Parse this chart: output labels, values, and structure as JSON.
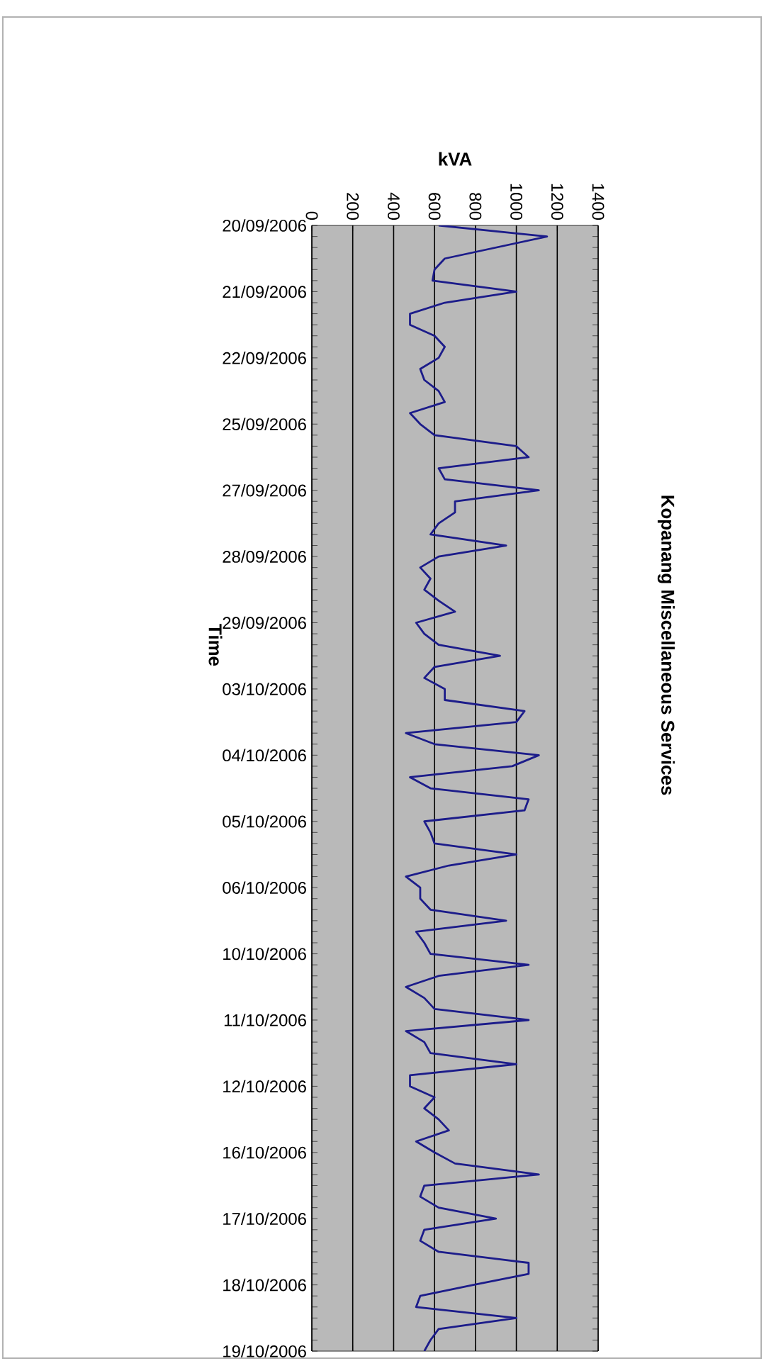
{
  "chart_data": {
    "type": "line",
    "orientation": "horizontal",
    "title": "Kopanang Miscellaneous Services",
    "xlabel": "kVA",
    "ylabel": "Time",
    "categories": [
      "20/09/2006",
      null,
      null,
      null,
      null,
      null,
      "21/09/2006",
      null,
      null,
      null,
      null,
      null,
      "22/09/2006",
      null,
      null,
      null,
      null,
      null,
      "25/09/2006",
      null,
      null,
      null,
      null,
      null,
      "27/09/2006",
      null,
      null,
      null,
      null,
      null,
      "28/09/2006",
      null,
      null,
      null,
      null,
      null,
      "29/09/2006",
      null,
      null,
      null,
      null,
      null,
      "03/10/2006",
      null,
      null,
      null,
      null,
      null,
      "04/10/2006",
      null,
      null,
      null,
      null,
      null,
      "05/10/2006",
      null,
      null,
      null,
      null,
      null,
      "06/10/2006",
      null,
      null,
      null,
      null,
      null,
      "10/10/2006",
      null,
      null,
      null,
      null,
      null,
      "11/10/2006",
      null,
      null,
      null,
      null,
      null,
      "12/10/2006",
      null,
      null,
      null,
      null,
      null,
      "16/10/2006",
      null,
      null,
      null,
      null,
      null,
      "17/10/2006",
      null,
      null,
      null,
      null,
      null,
      "18/10/2006",
      null,
      null,
      null,
      null,
      null,
      "19/10/2006"
    ],
    "series": [
      {
        "color": "#1c1c8a",
        "values": [
          620,
          1150,
          900,
          650,
          600,
          590,
          1000,
          650,
          480,
          480,
          600,
          650,
          620,
          530,
          550,
          620,
          650,
          480,
          530,
          600,
          1000,
          1060,
          620,
          650,
          1110,
          700,
          700,
          620,
          580,
          950,
          620,
          530,
          580,
          550,
          620,
          700,
          510,
          550,
          620,
          920,
          600,
          550,
          650,
          650,
          1040,
          1000,
          460,
          600,
          1110,
          980,
          480,
          580,
          1060,
          1040,
          550,
          580,
          600,
          1000,
          670,
          460,
          530,
          530,
          580,
          950,
          510,
          550,
          580,
          1060,
          620,
          460,
          550,
          600,
          1060,
          460,
          550,
          580,
          1000,
          480,
          480,
          600,
          550,
          620,
          670,
          510,
          600,
          700,
          1110,
          550,
          530,
          620,
          900,
          550,
          530,
          620,
          1060,
          1060,
          790,
          530,
          510,
          1000,
          620,
          580,
          550
        ]
      }
    ],
    "xlim": [
      0,
      1400
    ],
    "xticks": [
      0,
      200,
      400,
      600,
      800,
      1000,
      1200,
      1400
    ],
    "grid": "x"
  }
}
